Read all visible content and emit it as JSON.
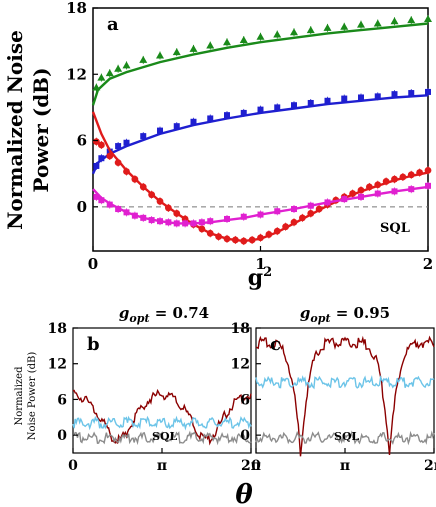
{
  "chart_data": [
    {
      "panel": "a",
      "type": "scatter",
      "panel_label": "a",
      "ylabel_line1": "Normalized Noise",
      "ylabel_line2": "Power (dB)",
      "xlabel_base": "g",
      "xlabel_exp": "2",
      "xlim": [
        0,
        2
      ],
      "ylim": [
        -4,
        18
      ],
      "xticks": [
        "0",
        "1",
        "2"
      ],
      "xtick_values": [
        0,
        1,
        2
      ],
      "yticks": [
        "0",
        "6",
        "12",
        "18"
      ],
      "ytick_values": [
        0,
        6,
        12,
        18
      ],
      "sql_label": "SQL",
      "series": [
        {
          "color": "#1a8a1a",
          "marker": "triangle",
          "points": [
            [
              0.02,
              10.8
            ],
            [
              0.05,
              11.7
            ],
            [
              0.1,
              12.1
            ],
            [
              0.15,
              12.5
            ],
            [
              0.2,
              12.8
            ],
            [
              0.3,
              13.3
            ],
            [
              0.4,
              13.7
            ],
            [
              0.5,
              14.0
            ],
            [
              0.6,
              14.3
            ],
            [
              0.7,
              14.6
            ],
            [
              0.8,
              14.9
            ],
            [
              0.9,
              15.1
            ],
            [
              1.0,
              15.4
            ],
            [
              1.1,
              15.6
            ],
            [
              1.2,
              15.8
            ],
            [
              1.3,
              16.0
            ],
            [
              1.4,
              16.2
            ],
            [
              1.5,
              16.3
            ],
            [
              1.6,
              16.5
            ],
            [
              1.7,
              16.6
            ],
            [
              1.8,
              16.8
            ],
            [
              1.9,
              16.9
            ],
            [
              2.0,
              17.0
            ]
          ],
          "fit": [
            [
              0,
              9.2
            ],
            [
              0.03,
              10.6
            ],
            [
              0.1,
              11.6
            ],
            [
              0.2,
              12.2
            ],
            [
              0.4,
              13.1
            ],
            [
              0.6,
              13.8
            ],
            [
              0.8,
              14.4
            ],
            [
              1.0,
              14.9
            ],
            [
              1.2,
              15.3
            ],
            [
              1.4,
              15.7
            ],
            [
              1.6,
              16.0
            ],
            [
              1.8,
              16.3
            ],
            [
              2.0,
              16.6
            ]
          ]
        },
        {
          "color": "#1f1fd0",
          "marker": "square",
          "points": [
            [
              0.02,
              3.7
            ],
            [
              0.05,
              4.4
            ],
            [
              0.1,
              5.0
            ],
            [
              0.15,
              5.5
            ],
            [
              0.2,
              5.8
            ],
            [
              0.3,
              6.4
            ],
            [
              0.4,
              6.9
            ],
            [
              0.5,
              7.3
            ],
            [
              0.6,
              7.7
            ],
            [
              0.7,
              8.0
            ],
            [
              0.8,
              8.3
            ],
            [
              0.9,
              8.5
            ],
            [
              1.0,
              8.8
            ],
            [
              1.1,
              9.0
            ],
            [
              1.2,
              9.2
            ],
            [
              1.3,
              9.4
            ],
            [
              1.4,
              9.6
            ],
            [
              1.5,
              9.8
            ],
            [
              1.6,
              9.9
            ],
            [
              1.7,
              10.0
            ],
            [
              1.8,
              10.2
            ],
            [
              1.9,
              10.3
            ],
            [
              2.0,
              10.4
            ]
          ],
          "fit": [
            [
              0,
              3.0
            ],
            [
              0.03,
              4.0
            ],
            [
              0.1,
              4.8
            ],
            [
              0.2,
              5.5
            ],
            [
              0.4,
              6.6
            ],
            [
              0.6,
              7.4
            ],
            [
              0.8,
              8.0
            ],
            [
              1.0,
              8.5
            ],
            [
              1.2,
              8.9
            ],
            [
              1.4,
              9.3
            ],
            [
              1.6,
              9.6
            ],
            [
              1.8,
              9.9
            ],
            [
              2.0,
              10.1
            ]
          ]
        },
        {
          "color": "#e01b1b",
          "marker": "circle",
          "points": [
            [
              0.02,
              5.9
            ],
            [
              0.05,
              5.6
            ],
            [
              0.1,
              4.6
            ],
            [
              0.15,
              4.0
            ],
            [
              0.2,
              3.2
            ],
            [
              0.25,
              2.5
            ],
            [
              0.3,
              1.8
            ],
            [
              0.35,
              1.1
            ],
            [
              0.4,
              0.5
            ],
            [
              0.45,
              -0.1
            ],
            [
              0.5,
              -0.6
            ],
            [
              0.55,
              -1.1
            ],
            [
              0.6,
              -1.6
            ],
            [
              0.65,
              -2.0
            ],
            [
              0.7,
              -2.4
            ],
            [
              0.75,
              -2.7
            ],
            [
              0.8,
              -2.9
            ],
            [
              0.85,
              -3.0
            ],
            [
              0.9,
              -3.1
            ],
            [
              0.95,
              -3.0
            ],
            [
              1.0,
              -2.8
            ],
            [
              1.05,
              -2.5
            ],
            [
              1.1,
              -2.2
            ],
            [
              1.15,
              -1.8
            ],
            [
              1.2,
              -1.4
            ],
            [
              1.25,
              -1.0
            ],
            [
              1.3,
              -0.6
            ],
            [
              1.35,
              -0.2
            ],
            [
              1.4,
              0.2
            ],
            [
              1.45,
              0.6
            ],
            [
              1.5,
              0.9
            ],
            [
              1.55,
              1.2
            ],
            [
              1.6,
              1.5
            ],
            [
              1.65,
              1.8
            ],
            [
              1.7,
              2.0
            ],
            [
              1.75,
              2.3
            ],
            [
              1.8,
              2.5
            ],
            [
              1.85,
              2.7
            ],
            [
              1.9,
              2.9
            ],
            [
              1.95,
              3.1
            ],
            [
              2.0,
              3.3
            ]
          ],
          "fit": [
            [
              0,
              8.6
            ],
            [
              0.05,
              6.6
            ],
            [
              0.1,
              5.1
            ],
            [
              0.2,
              3.3
            ],
            [
              0.3,
              1.8
            ],
            [
              0.4,
              0.5
            ],
            [
              0.5,
              -0.6
            ],
            [
              0.6,
              -1.6
            ],
            [
              0.7,
              -2.4
            ],
            [
              0.8,
              -2.9
            ],
            [
              0.9,
              -3.1
            ],
            [
              1.0,
              -2.9
            ],
            [
              1.1,
              -2.3
            ],
            [
              1.2,
              -1.5
            ],
            [
              1.3,
              -0.7
            ],
            [
              1.4,
              0.1
            ],
            [
              1.5,
              0.8
            ],
            [
              1.6,
              1.4
            ],
            [
              1.7,
              1.9
            ],
            [
              1.8,
              2.4
            ],
            [
              1.9,
              2.8
            ],
            [
              2.0,
              3.1
            ]
          ]
        },
        {
          "color": "#e020d0",
          "marker": "square",
          "points": [
            [
              0.02,
              0.9
            ],
            [
              0.05,
              0.6
            ],
            [
              0.1,
              0.2
            ],
            [
              0.15,
              -0.2
            ],
            [
              0.2,
              -0.5
            ],
            [
              0.25,
              -0.8
            ],
            [
              0.3,
              -1.0
            ],
            [
              0.35,
              -1.2
            ],
            [
              0.4,
              -1.3
            ],
            [
              0.45,
              -1.4
            ],
            [
              0.5,
              -1.5
            ],
            [
              0.55,
              -1.5
            ],
            [
              0.6,
              -1.5
            ],
            [
              0.65,
              -1.4
            ],
            [
              0.7,
              -1.3
            ],
            [
              0.8,
              -1.1
            ],
            [
              0.9,
              -0.9
            ],
            [
              1.0,
              -0.7
            ],
            [
              1.1,
              -0.4
            ],
            [
              1.2,
              -0.2
            ],
            [
              1.3,
              0.1
            ],
            [
              1.4,
              0.4
            ],
            [
              1.5,
              0.7
            ],
            [
              1.6,
              0.9
            ],
            [
              1.7,
              1.2
            ],
            [
              1.8,
              1.4
            ],
            [
              1.9,
              1.6
            ],
            [
              2.0,
              1.9
            ]
          ],
          "fit": [
            [
              0,
              1.6
            ],
            [
              0.05,
              0.8
            ],
            [
              0.1,
              0.3
            ],
            [
              0.2,
              -0.5
            ],
            [
              0.3,
              -1.0
            ],
            [
              0.4,
              -1.3
            ],
            [
              0.5,
              -1.5
            ],
            [
              0.6,
              -1.5
            ],
            [
              0.7,
              -1.4
            ],
            [
              0.8,
              -1.2
            ],
            [
              0.9,
              -1.0
            ],
            [
              1.0,
              -0.7
            ],
            [
              1.2,
              -0.2
            ],
            [
              1.4,
              0.4
            ],
            [
              1.6,
              0.9
            ],
            [
              1.8,
              1.4
            ],
            [
              2.0,
              1.8
            ]
          ]
        }
      ]
    },
    {
      "panel": "b",
      "type": "line",
      "panel_label": "b",
      "header_g": "g",
      "header_sub": "opt",
      "header_value": " = 0.74",
      "ylabel_line1": "Normalized",
      "ylabel_line2": "Noise Power (dB)",
      "xlim": [
        0,
        6.2832
      ],
      "ylim": [
        -3,
        18
      ],
      "xticks": [
        "0",
        "π",
        "2π"
      ],
      "xtick_values": [
        0,
        3.1416,
        6.2832
      ],
      "yticks": [
        "0",
        "6",
        "12",
        "18"
      ],
      "ytick_values": [
        0,
        6,
        12,
        18
      ],
      "sql_label": "SQL",
      "series": [
        {
          "color": "#8b0000",
          "kind": "dark",
          "baseline": 2.0,
          "amplitude": 4.8,
          "min_offset": 0.8,
          "dip_offset": 0
        },
        {
          "color": "#6cc4e8",
          "kind": "mid",
          "level": 2.5
        },
        {
          "color": "#8c8c8c",
          "kind": "sql",
          "level": 0.0
        }
      ]
    },
    {
      "panel": "c",
      "type": "line",
      "panel_label": "c",
      "header_g": "g",
      "header_sub": "opt",
      "header_value": " = 0.95",
      "xlim": [
        0,
        6.2832
      ],
      "ylim": [
        -3,
        18
      ],
      "xticks": [
        "0",
        "π",
        "2π"
      ],
      "xtick_values": [
        0,
        3.1416,
        6.2832
      ],
      "yticks": [
        "0",
        "6",
        "12",
        "18"
      ],
      "ytick_values": [
        0,
        6,
        12,
        18
      ],
      "sql_label": "SQL",
      "series": [
        {
          "color": "#8b0000",
          "kind": "dark",
          "baseline": 15.5,
          "amplitude": 18.6,
          "min_offset": 0
        },
        {
          "color": "#6cc4e8",
          "kind": "mid",
          "level": 9.3
        },
        {
          "color": "#8c8c8c",
          "kind": "sql",
          "level": 0.0
        }
      ]
    }
  ],
  "shared_xlabel": "θ"
}
